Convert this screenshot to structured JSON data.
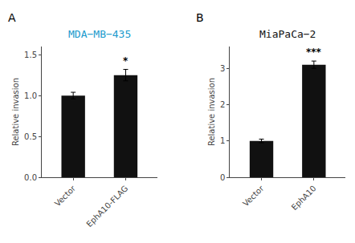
{
  "chart_data": [
    {
      "type": "bar",
      "panel_label": "A",
      "title": "MDA−MB−435",
      "title_color": "#1a9bcd",
      "categories": [
        "Vector",
        "EphA10-FLAG"
      ],
      "values": [
        1.0,
        1.25
      ],
      "errors": [
        0.04,
        0.07
      ],
      "color": "#111111",
      "ylabel": "Relative invasion",
      "ylim": [
        0,
        1.6
      ],
      "yticks": [
        {
          "value": 0,
          "label": "0.0"
        },
        0.5,
        {
          "value": 1.0,
          "label": "1.0"
        },
        1.5
      ],
      "annotations": [
        {
          "category": "EphA10-FLAG",
          "text": "*"
        }
      ],
      "grid": false
    },
    {
      "type": "bar",
      "panel_label": "B",
      "title": "MiaPaCa−2",
      "title_color": "#111111",
      "categories": [
        "Vector",
        "EphA10"
      ],
      "values": [
        1.0,
        3.1
      ],
      "errors": [
        0.05,
        0.1
      ],
      "color": "#111111",
      "ylabel": "Relative invasion",
      "ylim": [
        0,
        3.6
      ],
      "yticks": [
        0,
        1,
        2,
        3
      ],
      "annotations": [
        {
          "category": "EphA10",
          "text": "***"
        }
      ],
      "grid": false
    }
  ]
}
